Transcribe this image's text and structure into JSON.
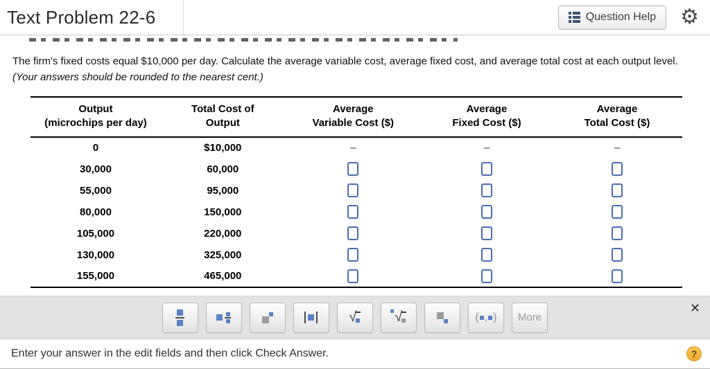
{
  "header": {
    "title": "Text Problem 22-6",
    "question_help": "Question Help",
    "gear_glyph": "⚙"
  },
  "problem": {
    "text": "The firm's fixed costs equal $10,000 per day. Calculate the average variable cost, average fixed cost, and average total cost at each output level. ",
    "note_italic": "(Your answers should be rounded to the nearest cent.)"
  },
  "table": {
    "headers": [
      {
        "line1": "Output",
        "line2": "(microchips per day)"
      },
      {
        "line1": "Total Cost of",
        "line2": "Output"
      },
      {
        "line1": "Average",
        "line2": "Variable Cost ($)"
      },
      {
        "line1": "Average",
        "line2": "Fixed Cost ($)"
      },
      {
        "line1": "Average",
        "line2": "Total Cost ($)"
      }
    ],
    "rows": [
      {
        "output": "0",
        "total": "$10,000",
        "avc": "–",
        "afc": "–",
        "atc": "–",
        "inputs": false
      },
      {
        "output": "30,000",
        "total": "60,000",
        "inputs": true
      },
      {
        "output": "55,000",
        "total": "95,000",
        "inputs": true
      },
      {
        "output": "80,000",
        "total": "150,000",
        "inputs": true
      },
      {
        "output": "105,000",
        "total": "220,000",
        "inputs": true
      },
      {
        "output": "130,000",
        "total": "325,000",
        "inputs": true
      },
      {
        "output": "155,000",
        "total": "465,000",
        "inputs": true
      }
    ]
  },
  "toolbar": {
    "more_label": "More",
    "close_label": "✕"
  },
  "icons": {
    "radical": "√",
    "interval_open": "(",
    "interval_comma": ",",
    "interval_close": ")"
  },
  "footer": {
    "message": "Enter your answer in the edit fields and then click Check Answer.",
    "help_label": "?"
  }
}
